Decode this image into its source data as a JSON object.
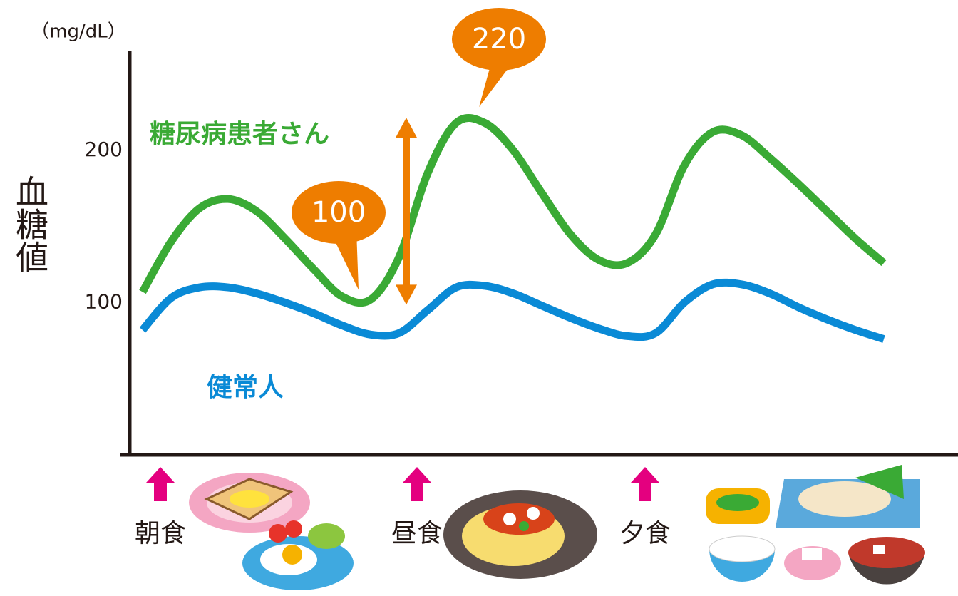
{
  "chart_data": {
    "type": "line",
    "y_label": "血糖値",
    "unit": "（mg/dL）",
    "categories": [
      "朝食",
      null,
      null,
      null,
      null,
      null,
      null,
      null,
      null,
      "昼食",
      null,
      null,
      null,
      null,
      null,
      null,
      null,
      "夕食",
      null,
      null,
      null,
      null,
      null,
      null,
      null,
      null,
      null
    ],
    "series": [
      {
        "name": "糖尿病患者さん",
        "color": "#3aaa35",
        "values": [
          107,
          140,
          162,
          168,
          160,
          142,
          122,
          104,
          102,
          130,
          185,
          218,
          218,
          200,
          172,
          145,
          128,
          126,
          145,
          190,
          212,
          210,
          195,
          178,
          160,
          142,
          126
        ]
      },
      {
        "name": "健常人",
        "color": "#0a8ad6",
        "values": [
          82,
          103,
          110,
          110,
          106,
          100,
          93,
          85,
          79,
          80,
          95,
          110,
          111,
          106,
          98,
          90,
          83,
          78,
          80,
          100,
          112,
          112,
          106,
          97,
          89,
          82,
          76
        ]
      }
    ],
    "annotations": [
      100,
      220
    ],
    "annotation_color": "#ee7d00",
    "marker_color": "#e4007f",
    "ylim": [
      0,
      265
    ],
    "yticks": [
      100,
      200
    ]
  }
}
